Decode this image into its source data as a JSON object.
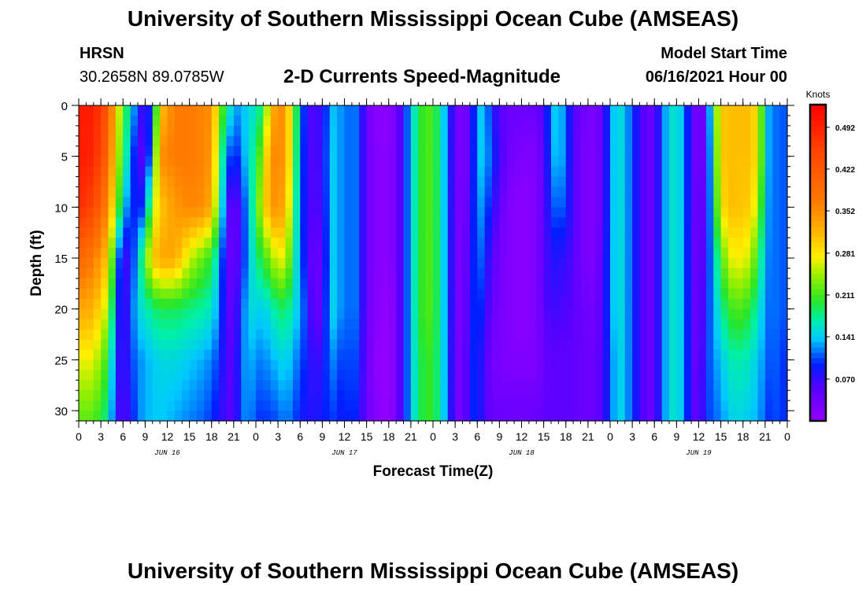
{
  "page": {
    "title_top": "University of Southern Mississippi Ocean Cube (AMSEAS)",
    "title_bottom": "University of Southern Mississippi Ocean Cube (AMSEAS)",
    "station": "HRSN",
    "coords": "30.2658N  89.0785W",
    "plot_title": "2-D Currents Speed-Magnitude",
    "model_start_label": "Model Start Time",
    "model_start_value": "06/16/2021 Hour 00"
  },
  "chart_data": {
    "type": "heatmap",
    "title": "2-D Currents Speed-Magnitude",
    "xlabel": "Forecast Time(Z)",
    "ylabel": "Depth (ft)",
    "xlim": [
      0,
      96
    ],
    "ylim": [
      31,
      0
    ],
    "x_ticks": [
      0,
      3,
      6,
      9,
      12,
      15,
      18,
      21,
      24,
      27,
      30,
      33,
      36,
      39,
      42,
      45,
      48,
      51,
      54,
      57,
      60,
      63,
      66,
      69,
      72,
      75,
      78,
      81,
      84,
      87,
      90,
      93,
      96
    ],
    "x_tick_labels": [
      "0",
      "3",
      "6",
      "9",
      "12",
      "15",
      "18",
      "21",
      "0",
      "3",
      "6",
      "9",
      "12",
      "15",
      "18",
      "21",
      "0",
      "3",
      "6",
      "9",
      "12",
      "15",
      "18",
      "21",
      "0",
      "3",
      "6",
      "9",
      "12",
      "15",
      "18",
      "21",
      "0"
    ],
    "date_labels": [
      {
        "label": "JUN 16",
        "x": 12
      },
      {
        "label": "JUN 17",
        "x": 36
      },
      {
        "label": "JUN 18",
        "x": 60
      },
      {
        "label": "JUN 19",
        "x": 84
      }
    ],
    "y_ticks": [
      0,
      5,
      10,
      15,
      20,
      25,
      30
    ],
    "y_tick_labels": [
      "0",
      "5",
      "10",
      "15",
      "20",
      "25",
      "30"
    ],
    "colorbar": {
      "unit_label": "Knots",
      "range": [
        0.0,
        0.53
      ],
      "tick_values": [
        0.07,
        0.141,
        0.211,
        0.281,
        0.352,
        0.422,
        0.492
      ],
      "tick_labels": [
        "0.070",
        "0.141",
        "0.211",
        "0.281",
        "0.352",
        "0.422",
        "0.492"
      ]
    },
    "profile_columns_note": "speed in knots at depths 0,5,10,15,20,25,31 ft for each forecast hour (time on x)",
    "depth_levels": [
      0,
      5,
      10,
      15,
      20,
      25,
      31
    ],
    "profiles": [
      {
        "t": 0,
        "v": [
          0.5,
          0.5,
          0.48,
          0.4,
          0.33,
          0.27,
          0.22
        ]
      },
      {
        "t": 2,
        "v": [
          0.5,
          0.49,
          0.45,
          0.37,
          0.32,
          0.27,
          0.22
        ]
      },
      {
        "t": 4,
        "v": [
          0.42,
          0.4,
          0.35,
          0.3,
          0.25,
          0.2,
          0.17
        ]
      },
      {
        "t": 5,
        "v": [
          0.3,
          0.28,
          0.25,
          0.15,
          0.12,
          0.1,
          0.08
        ]
      },
      {
        "t": 6,
        "v": [
          0.22,
          0.2,
          0.15,
          0.06,
          0.05,
          0.05,
          0.05
        ]
      },
      {
        "t": 7,
        "v": [
          0.15,
          0.13,
          0.1,
          0.08,
          0.1,
          0.1,
          0.08
        ]
      },
      {
        "t": 8,
        "v": [
          0.1,
          0.06,
          0.09,
          0.14,
          0.15,
          0.12,
          0.12
        ]
      },
      {
        "t": 9,
        "v": [
          0.05,
          0.05,
          0.1,
          0.22,
          0.16,
          0.13,
          0.13
        ]
      },
      {
        "t": 10,
        "v": [
          0.12,
          0.15,
          0.25,
          0.3,
          0.18,
          0.14,
          0.14
        ]
      },
      {
        "t": 11,
        "v": [
          0.3,
          0.35,
          0.3,
          0.33,
          0.19,
          0.15,
          0.14
        ]
      },
      {
        "t": 13,
        "v": [
          0.37,
          0.37,
          0.34,
          0.33,
          0.19,
          0.15,
          0.13
        ]
      },
      {
        "t": 15,
        "v": [
          0.37,
          0.37,
          0.36,
          0.26,
          0.18,
          0.14,
          0.12
        ]
      },
      {
        "t": 17,
        "v": [
          0.36,
          0.36,
          0.35,
          0.22,
          0.17,
          0.13,
          0.11
        ]
      },
      {
        "t": 18,
        "v": [
          0.35,
          0.34,
          0.32,
          0.2,
          0.16,
          0.12,
          0.1
        ]
      },
      {
        "t": 19,
        "v": [
          0.25,
          0.22,
          0.2,
          0.14,
          0.12,
          0.1,
          0.08
        ]
      },
      {
        "t": 20,
        "v": [
          0.18,
          0.12,
          0.08,
          0.06,
          0.06,
          0.06,
          0.06
        ]
      },
      {
        "t": 21,
        "v": [
          0.14,
          0.09,
          0.03,
          0.03,
          0.04,
          0.05,
          0.05
        ]
      },
      {
        "t": 22,
        "v": [
          0.12,
          0.11,
          0.08,
          0.08,
          0.1,
          0.11,
          0.11
        ]
      },
      {
        "t": 23,
        "v": [
          0.16,
          0.16,
          0.14,
          0.13,
          0.15,
          0.14,
          0.13
        ]
      },
      {
        "t": 24,
        "v": [
          0.15,
          0.18,
          0.2,
          0.18,
          0.15,
          0.12,
          0.1
        ]
      },
      {
        "t": 25,
        "v": [
          0.2,
          0.25,
          0.28,
          0.2,
          0.14,
          0.12,
          0.1
        ]
      },
      {
        "t": 26,
        "v": [
          0.3,
          0.35,
          0.34,
          0.24,
          0.16,
          0.13,
          0.1
        ]
      },
      {
        "t": 27,
        "v": [
          0.36,
          0.36,
          0.35,
          0.27,
          0.18,
          0.14,
          0.11
        ]
      },
      {
        "t": 28,
        "v": [
          0.34,
          0.34,
          0.32,
          0.27,
          0.19,
          0.15,
          0.12
        ]
      },
      {
        "t": 29,
        "v": [
          0.25,
          0.24,
          0.22,
          0.19,
          0.16,
          0.13,
          0.11
        ]
      },
      {
        "t": 30,
        "v": [
          0.13,
          0.12,
          0.11,
          0.12,
          0.13,
          0.11,
          0.09
        ]
      },
      {
        "t": 31,
        "v": [
          0.07,
          0.07,
          0.07,
          0.07,
          0.09,
          0.09,
          0.08
        ]
      },
      {
        "t": 32,
        "v": [
          0.05,
          0.05,
          0.05,
          0.03,
          0.03,
          0.06,
          0.08
        ]
      },
      {
        "t": 33,
        "v": [
          0.08,
          0.08,
          0.07,
          0.06,
          0.06,
          0.08,
          0.09
        ]
      },
      {
        "t": 34,
        "v": [
          0.12,
          0.13,
          0.13,
          0.13,
          0.14,
          0.12,
          0.1
        ]
      },
      {
        "t": 35,
        "v": [
          0.15,
          0.15,
          0.15,
          0.15,
          0.15,
          0.12,
          0.1
        ]
      },
      {
        "t": 36,
        "v": [
          0.1,
          0.1,
          0.1,
          0.1,
          0.1,
          0.09,
          0.08
        ]
      },
      {
        "t": 37,
        "v": [
          0.13,
          0.13,
          0.13,
          0.13,
          0.13,
          0.12,
          0.11
        ]
      },
      {
        "t": 38,
        "v": [
          0.1,
          0.1,
          0.1,
          0.1,
          0.1,
          0.09,
          0.08
        ]
      },
      {
        "t": 39,
        "v": [
          0.04,
          0.04,
          0.04,
          0.04,
          0.04,
          0.04,
          0.04
        ]
      },
      {
        "t": 40,
        "v": [
          0.01,
          0.02,
          0.02,
          0.02,
          0.02,
          0.01,
          0.02
        ]
      },
      {
        "t": 42,
        "v": [
          0.01,
          0.01,
          0.01,
          0.01,
          0.0,
          0.0,
          0.0
        ]
      },
      {
        "t": 43,
        "v": [
          0.03,
          0.03,
          0.03,
          0.03,
          0.03,
          0.03,
          0.03
        ]
      },
      {
        "t": 44,
        "v": [
          0.08,
          0.08,
          0.08,
          0.08,
          0.08,
          0.08,
          0.08
        ]
      },
      {
        "t": 45,
        "v": [
          0.14,
          0.14,
          0.14,
          0.14,
          0.14,
          0.14,
          0.14
        ]
      },
      {
        "t": 46,
        "v": [
          0.19,
          0.19,
          0.19,
          0.19,
          0.19,
          0.18,
          0.18
        ]
      },
      {
        "t": 47,
        "v": [
          0.22,
          0.22,
          0.22,
          0.22,
          0.22,
          0.21,
          0.21
        ]
      },
      {
        "t": 48,
        "v": [
          0.21,
          0.21,
          0.21,
          0.21,
          0.21,
          0.2,
          0.2
        ]
      },
      {
        "t": 49,
        "v": [
          0.17,
          0.17,
          0.17,
          0.17,
          0.17,
          0.17,
          0.17
        ]
      },
      {
        "t": 50,
        "v": [
          0.11,
          0.11,
          0.11,
          0.11,
          0.11,
          0.11,
          0.11
        ]
      },
      {
        "t": 51,
        "v": [
          0.04,
          0.04,
          0.04,
          0.04,
          0.04,
          0.04,
          0.04
        ]
      },
      {
        "t": 52,
        "v": [
          0.02,
          0.02,
          0.02,
          0.02,
          0.02,
          0.02,
          0.02
        ]
      },
      {
        "t": 53,
        "v": [
          0.05,
          0.05,
          0.06,
          0.07,
          0.08,
          0.09,
          0.09
        ]
      },
      {
        "t": 54,
        "v": [
          0.14,
          0.14,
          0.13,
          0.12,
          0.11,
          0.1,
          0.1
        ]
      },
      {
        "t": 55,
        "v": [
          0.14,
          0.14,
          0.12,
          0.1,
          0.08,
          0.06,
          0.06
        ]
      },
      {
        "t": 56,
        "v": [
          0.08,
          0.1,
          0.08,
          0.05,
          0.04,
          0.03,
          0.04
        ]
      },
      {
        "t": 58,
        "v": [
          0.04,
          0.04,
          0.02,
          0.02,
          0.02,
          0.02,
          0.04
        ]
      },
      {
        "t": 60,
        "v": [
          0.04,
          0.02,
          0.01,
          0.01,
          0.01,
          0.02,
          0.04
        ]
      },
      {
        "t": 62,
        "v": [
          0.04,
          0.02,
          0.02,
          0.02,
          0.02,
          0.02,
          0.04
        ]
      },
      {
        "t": 63,
        "v": [
          0.06,
          0.05,
          0.05,
          0.05,
          0.05,
          0.04,
          0.05
        ]
      },
      {
        "t": 64,
        "v": [
          0.13,
          0.12,
          0.1,
          0.08,
          0.07,
          0.05,
          0.05
        ]
      },
      {
        "t": 65,
        "v": [
          0.15,
          0.15,
          0.12,
          0.08,
          0.06,
          0.05,
          0.05
        ]
      },
      {
        "t": 66,
        "v": [
          0.11,
          0.11,
          0.1,
          0.07,
          0.06,
          0.05,
          0.05
        ]
      },
      {
        "t": 67,
        "v": [
          0.06,
          0.06,
          0.06,
          0.06,
          0.05,
          0.05,
          0.05
        ]
      },
      {
        "t": 68,
        "v": [
          0.04,
          0.03,
          0.03,
          0.03,
          0.04,
          0.04,
          0.04
        ]
      },
      {
        "t": 70,
        "v": [
          0.02,
          0.02,
          0.02,
          0.02,
          0.03,
          0.04,
          0.04
        ]
      },
      {
        "t": 71,
        "v": [
          0.05,
          0.05,
          0.05,
          0.06,
          0.06,
          0.06,
          0.06
        ]
      },
      {
        "t": 72,
        "v": [
          0.12,
          0.12,
          0.12,
          0.12,
          0.12,
          0.11,
          0.11
        ]
      },
      {
        "t": 73,
        "v": [
          0.16,
          0.16,
          0.16,
          0.16,
          0.16,
          0.15,
          0.15
        ]
      },
      {
        "t": 74,
        "v": [
          0.14,
          0.14,
          0.14,
          0.14,
          0.14,
          0.14,
          0.14
        ]
      },
      {
        "t": 75,
        "v": [
          0.1,
          0.1,
          0.1,
          0.1,
          0.1,
          0.1,
          0.1
        ]
      },
      {
        "t": 76,
        "v": [
          0.07,
          0.07,
          0.07,
          0.07,
          0.07,
          0.07,
          0.07
        ]
      },
      {
        "t": 77,
        "v": [
          0.04,
          0.04,
          0.04,
          0.04,
          0.04,
          0.04,
          0.04
        ]
      },
      {
        "t": 78,
        "v": [
          0.04,
          0.04,
          0.04,
          0.04,
          0.04,
          0.04,
          0.04
        ]
      },
      {
        "t": 79,
        "v": [
          0.11,
          0.11,
          0.11,
          0.11,
          0.11,
          0.11,
          0.11
        ]
      },
      {
        "t": 80,
        "v": [
          0.15,
          0.15,
          0.15,
          0.15,
          0.15,
          0.15,
          0.15
        ]
      },
      {
        "t": 81,
        "v": [
          0.16,
          0.16,
          0.16,
          0.16,
          0.16,
          0.16,
          0.16
        ]
      },
      {
        "t": 82,
        "v": [
          0.13,
          0.13,
          0.13,
          0.13,
          0.13,
          0.13,
          0.13
        ]
      },
      {
        "t": 83,
        "v": [
          0.06,
          0.06,
          0.06,
          0.06,
          0.06,
          0.06,
          0.06
        ]
      },
      {
        "t": 84,
        "v": [
          0.02,
          0.02,
          0.03,
          0.03,
          0.03,
          0.03,
          0.04
        ]
      },
      {
        "t": 85,
        "v": [
          0.06,
          0.06,
          0.07,
          0.08,
          0.09,
          0.1,
          0.1
        ]
      },
      {
        "t": 86,
        "v": [
          0.2,
          0.18,
          0.16,
          0.14,
          0.13,
          0.12,
          0.11
        ]
      },
      {
        "t": 87,
        "v": [
          0.3,
          0.3,
          0.28,
          0.21,
          0.17,
          0.14,
          0.12
        ]
      },
      {
        "t": 88,
        "v": [
          0.31,
          0.31,
          0.31,
          0.26,
          0.2,
          0.16,
          0.14
        ]
      },
      {
        "t": 89,
        "v": [
          0.31,
          0.31,
          0.31,
          0.28,
          0.22,
          0.17,
          0.15
        ]
      },
      {
        "t": 91,
        "v": [
          0.31,
          0.31,
          0.3,
          0.26,
          0.2,
          0.16,
          0.14
        ]
      },
      {
        "t": 92,
        "v": [
          0.28,
          0.28,
          0.25,
          0.2,
          0.16,
          0.14,
          0.13
        ]
      },
      {
        "t": 93,
        "v": [
          0.16,
          0.16,
          0.15,
          0.14,
          0.13,
          0.12,
          0.11
        ]
      },
      {
        "t": 94,
        "v": [
          0.1,
          0.1,
          0.1,
          0.1,
          0.1,
          0.1,
          0.09
        ]
      },
      {
        "t": 95,
        "v": [
          0.13,
          0.13,
          0.13,
          0.13,
          0.13,
          0.12,
          0.12
        ]
      },
      {
        "t": 96,
        "v": [
          0.09,
          0.09,
          0.09,
          0.09,
          0.09,
          0.08,
          0.08
        ]
      }
    ]
  }
}
